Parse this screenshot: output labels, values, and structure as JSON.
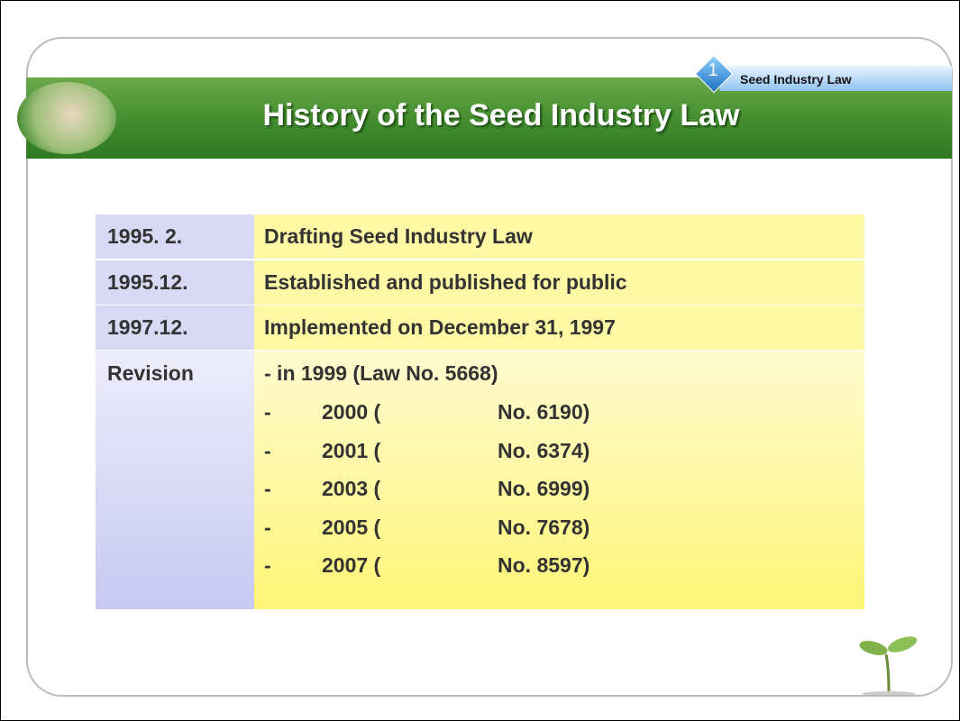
{
  "badge": {
    "number": "1",
    "label": "Seed Industry Law"
  },
  "title": "History of the Seed Industry Law",
  "table": {
    "rows": [
      [
        "1995. 2.",
        "Drafting Seed Industry Law"
      ],
      [
        "1995.12.",
        "Established and published for public"
      ],
      [
        "1997.12.",
        "Implemented on December 31, 1997"
      ]
    ],
    "revision": {
      "label": "Revision",
      "first_line": "- in 1999 (Law No. 5668)",
      "items": [
        {
          "dash": "-",
          "year": "2000 (",
          "number": "No. 6190)"
        },
        {
          "dash": "-",
          "year": "2001 (",
          "number": "No. 6374)"
        },
        {
          "dash": "-",
          "year": "2003 (",
          "number": "No. 6999)"
        },
        {
          "dash": "-",
          "year": "2005 (",
          "number": "No. 7678)"
        },
        {
          "dash": "-",
          "year": "2007 (",
          "number": "No. 8597)"
        }
      ]
    }
  }
}
